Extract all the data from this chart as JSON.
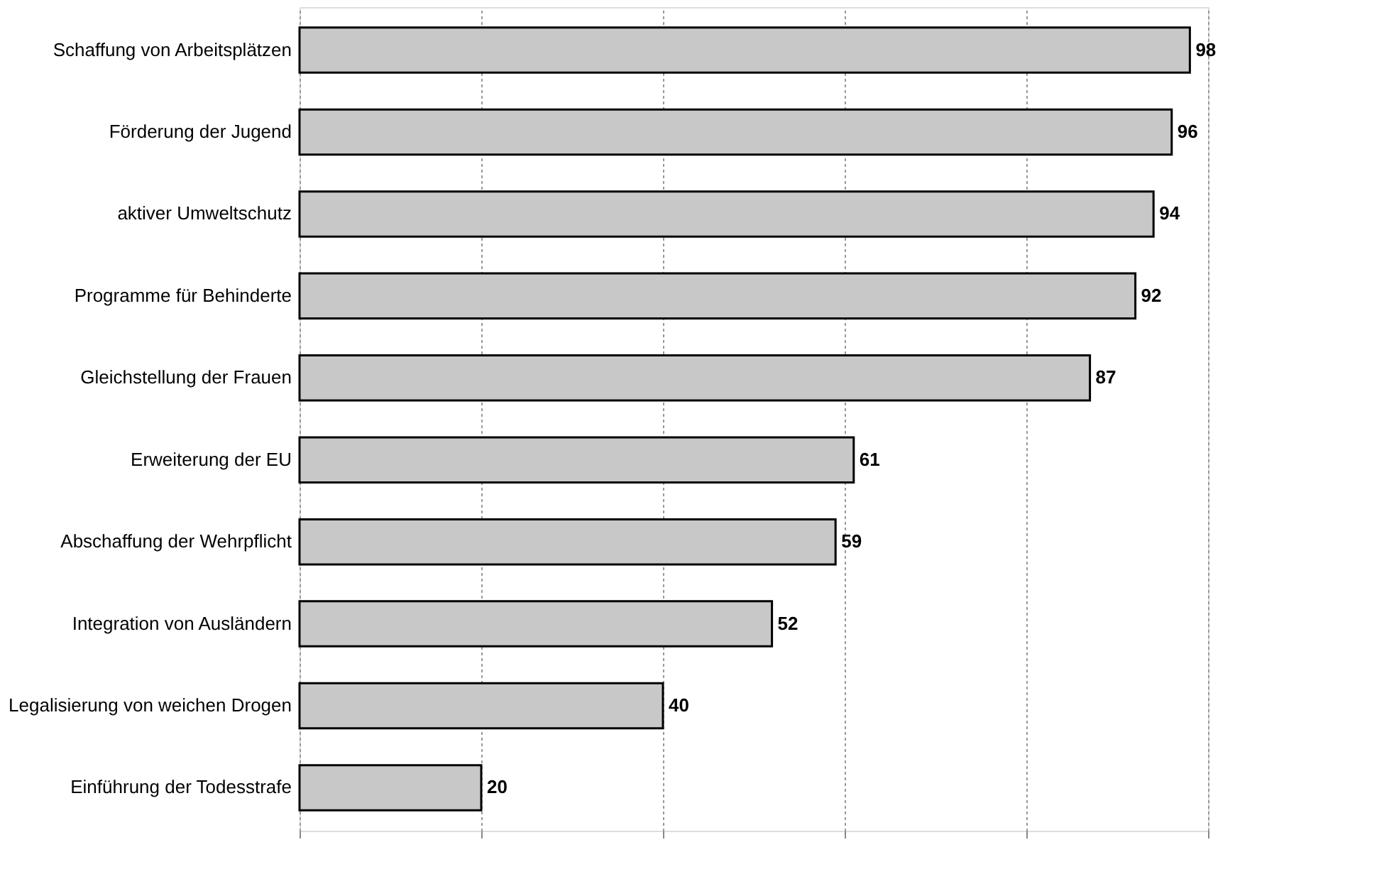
{
  "chart_data": {
    "type": "bar",
    "orientation": "horizontal",
    "categories": [
      "Schaffung von Arbeitsplätzen",
      "Förderung der Jugend",
      "aktiver Umweltschutz",
      "Programme für Behinderte",
      "Gleichstellung der Frauen",
      "Erweiterung der EU",
      "Abschaffung der Wehrpflicht",
      "Integration von Ausländern",
      "Legalisierung von weichen Drogen",
      "Einführung der Todesstrafe"
    ],
    "values": [
      98,
      96,
      94,
      92,
      87,
      61,
      59,
      52,
      40,
      20
    ],
    "color": "#c8c8c8",
    "xlim": [
      0,
      100
    ],
    "xticks": [
      {
        "value": 0,
        "label": null
      },
      {
        "value": 20,
        "label": null
      },
      {
        "value": 40,
        "label": null
      },
      {
        "value": 60,
        "label": null
      },
      {
        "value": 80,
        "label": null
      },
      {
        "value": 100,
        "label": null
      }
    ],
    "tick_labels": "y",
    "grid": "x",
    "data_labels": true
  }
}
